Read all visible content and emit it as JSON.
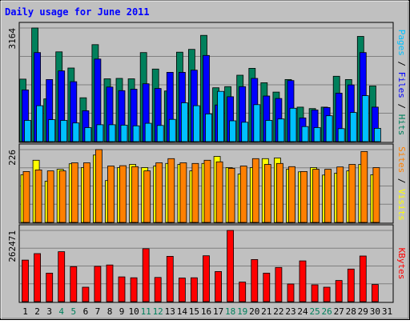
{
  "chart_data": {
    "type": "bar",
    "title": "Daily usage for June 2011",
    "categories": [
      "1",
      "2",
      "3",
      "4",
      "5",
      "6",
      "7",
      "8",
      "9",
      "10",
      "11",
      "12",
      "13",
      "14",
      "15",
      "16",
      "17",
      "18",
      "19",
      "20",
      "21",
      "22",
      "23",
      "24",
      "25",
      "26",
      "27",
      "28",
      "29",
      "30",
      "31"
    ],
    "weekend_days": [
      "4",
      "5",
      "11",
      "12",
      "18",
      "19",
      "25",
      "26"
    ],
    "panels": [
      {
        "id": "hits-files-pages",
        "max_label": "3164",
        "ylim": [
          0,
          3164
        ],
        "side_label": [
          "Pages",
          " / ",
          "Files",
          " / ",
          "Hits"
        ],
        "side_label_colors": [
          "#00c0ff",
          "#000000",
          "#0000ff",
          "#000000",
          "#00805c"
        ],
        "series": [
          {
            "name": "Hits",
            "color": "#00805c",
            "values": [
              1740,
              3164,
              1190,
              2500,
              2050,
              1220,
              2700,
              1750,
              1760,
              1750,
              2480,
              2020,
              1410,
              2490,
              2570,
              2960,
              1500,
              1530,
              1850,
              2040,
              1640,
              1380,
              1730,
              960,
              920,
              960,
              1820,
              1730,
              2930,
              1550,
              0
            ]
          },
          {
            "name": "Files",
            "color": "#0000ff",
            "values": [
              1440,
              2480,
              1730,
              1970,
              1670,
              860,
              2300,
              1520,
              1420,
              1460,
              1610,
              1480,
              1930,
              1930,
              1990,
              2400,
              1020,
              1250,
              1530,
              1760,
              1270,
              1200,
              1700,
              660,
              880,
              950,
              1350,
              1580,
              2480,
              960,
              0
            ]
          },
          {
            "name": "Pages",
            "color": "#00c0ff",
            "values": [
              590,
              1000,
              610,
              590,
              520,
              390,
              470,
              470,
              460,
              440,
              510,
              450,
              620,
              1080,
              1000,
              770,
              1400,
              580,
              540,
              1030,
              590,
              630,
              930,
              420,
              390,
              720,
              360,
              810,
              1280,
              370,
              0
            ]
          }
        ]
      },
      {
        "id": "visits-sites",
        "max_label": "226",
        "ylim": [
          0,
          226
        ],
        "side_label": [
          "Sites",
          " / ",
          "Visits"
        ],
        "side_label_colors": [
          "#ff8000",
          "#000000",
          "#ffff00"
        ],
        "series": [
          {
            "name": "Visits",
            "color": "#ffff00",
            "values": [
              148,
              193,
              128,
              165,
              182,
              170,
              209,
              130,
              170,
              180,
              170,
              175,
              183,
              180,
              160,
              183,
              205,
              170,
              150,
              170,
              198,
              200,
              165,
              157,
              170,
              147,
              153,
              160,
              180,
              148,
              0
            ]
          },
          {
            "name": "Sites",
            "color": "#ff8000",
            "values": [
              158,
              163,
              160,
              160,
              185,
              185,
              226,
              175,
              176,
              173,
              160,
              185,
              198,
              185,
              183,
              193,
              188,
              168,
              175,
              198,
              180,
              183,
              173,
              158,
              165,
              165,
              172,
              180,
              220,
              170,
              0
            ]
          }
        ]
      },
      {
        "id": "kbytes",
        "max_label": "262471",
        "ylim": [
          0,
          262471
        ],
        "side_label": [
          "KBytes"
        ],
        "side_label_colors": [
          "#ff0000"
        ],
        "series": [
          {
            "name": "KBytes",
            "color": "#ff0000",
            "values": [
              153000,
              177000,
              105000,
              184000,
              129000,
              53000,
              130000,
              135000,
              91000,
              88000,
              195000,
              89000,
              167000,
              87000,
              88000,
              169000,
              111000,
              262471,
              72000,
              155000,
              105000,
              126000,
              65000,
              150000,
              62000,
              53000,
              78000,
              120000,
              168000,
              63000,
              0
            ]
          }
        ]
      }
    ]
  }
}
